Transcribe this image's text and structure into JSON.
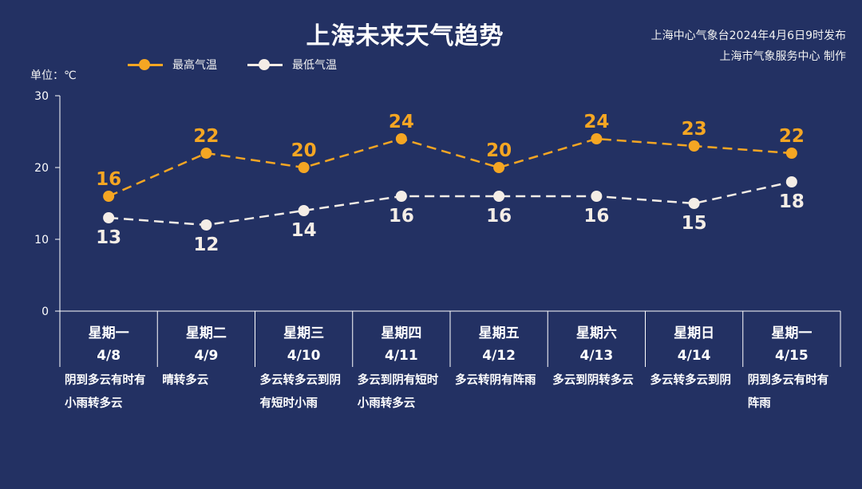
{
  "title": "上海未来天气趋势",
  "source": {
    "line1": "上海中心气象台2024年4月6日9时发布",
    "line2": "上海市气象服务中心 制作"
  },
  "unit_label": "单位：℃",
  "colors": {
    "background": "#233163",
    "high": "#f5a623",
    "low": "#f4ede6",
    "axis": "#ffffff"
  },
  "chart_data": {
    "type": "line",
    "ylim": [
      0,
      30
    ],
    "yticks": [
      0,
      10,
      20,
      30
    ],
    "grid": false,
    "legend_position": "top-left",
    "categories": [
      {
        "weekday": "星期一",
        "date": "4/8"
      },
      {
        "weekday": "星期二",
        "date": "4/9"
      },
      {
        "weekday": "星期三",
        "date": "4/10"
      },
      {
        "weekday": "星期四",
        "date": "4/11"
      },
      {
        "weekday": "星期五",
        "date": "4/12"
      },
      {
        "weekday": "星期六",
        "date": "4/13"
      },
      {
        "weekday": "星期日",
        "date": "4/14"
      },
      {
        "weekday": "星期一",
        "date": "4/15"
      }
    ],
    "series": [
      {
        "name": "最高气温",
        "values": [
          16,
          22,
          20,
          24,
          20,
          24,
          23,
          22
        ],
        "color": "#f5a623",
        "line_style": "dashed"
      },
      {
        "name": "最低气温",
        "values": [
          13,
          12,
          14,
          16,
          16,
          16,
          15,
          18
        ],
        "color": "#f4ede6",
        "line_style": "dashed"
      }
    ]
  },
  "weather": [
    "阴到多云有时有小雨转多云",
    "晴转多云",
    "多云转多云到阴有短时小雨",
    "多云到阴有短时小雨转多云",
    "多云转阴有阵雨",
    "多云到阴转多云",
    "多云转多云到阴",
    "阴到多云有时有阵雨"
  ]
}
